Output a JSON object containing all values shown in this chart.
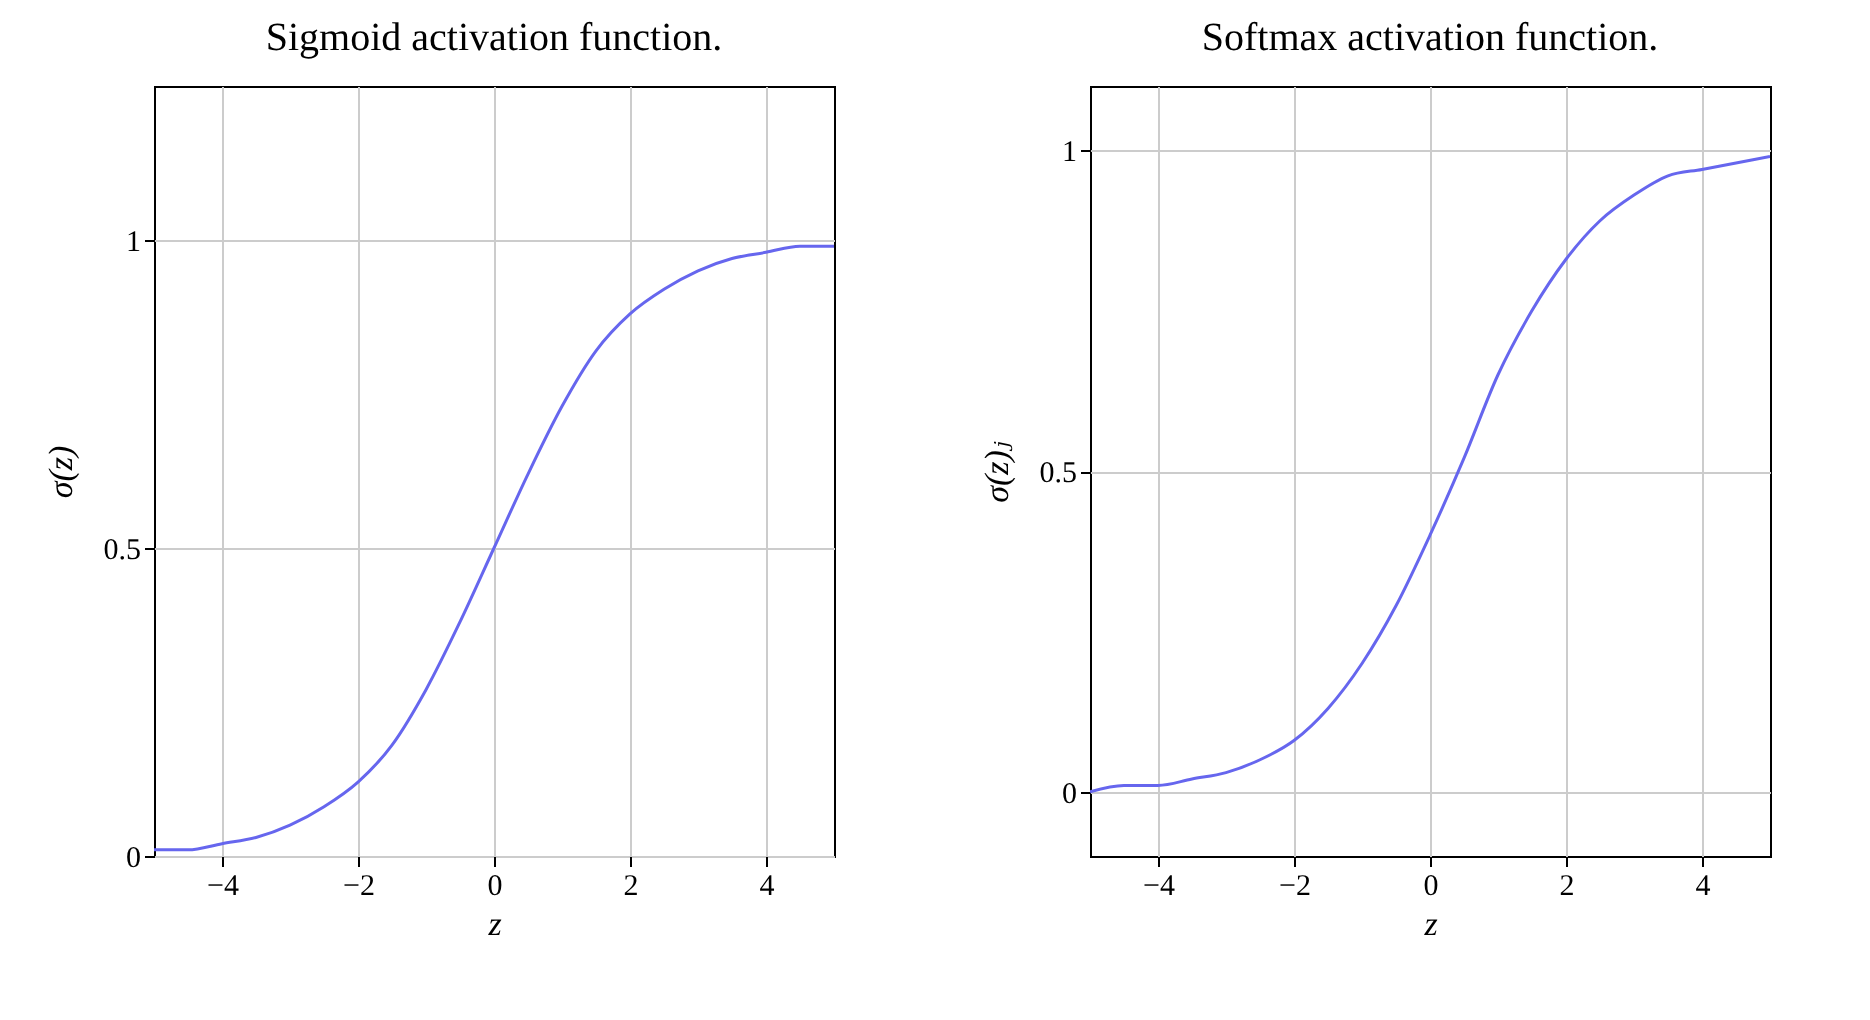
{
  "chart_data": [
    {
      "type": "line",
      "title": "Sigmoid activation function.",
      "xlabel": "z",
      "ylabel": "σ(z)",
      "x": [
        -5,
        -4.5,
        -4,
        -3.5,
        -3,
        -2.5,
        -2,
        -1.5,
        -1,
        -0.5,
        0,
        0.5,
        1,
        1.5,
        2,
        2.5,
        3,
        3.5,
        4,
        4.5,
        5
      ],
      "series": [
        {
          "color": "#6666ee",
          "values": [
            0.01,
            0.01,
            0.02,
            0.03,
            0.05,
            0.08,
            0.12,
            0.18,
            0.27,
            0.38,
            0.5,
            0.62,
            0.73,
            0.82,
            0.88,
            0.92,
            0.95,
            0.97,
            0.98,
            0.99,
            0.99
          ]
        }
      ],
      "xlim": [
        -5,
        5
      ],
      "xticks": [
        -4,
        -2,
        0,
        2,
        4
      ],
      "ylim": [
        0,
        1.25
      ],
      "yticks": [
        0,
        0.5,
        1
      ],
      "grid": true,
      "marker": "none",
      "line_style": "solid"
    },
    {
      "type": "line",
      "title": "Softmax activation function.",
      "xlabel": "z",
      "ylabel": "σ(z)ⱼ",
      "x": [
        -5,
        -4.5,
        -4,
        -3.5,
        -3,
        -2.5,
        -2,
        -1.5,
        -1,
        -0.5,
        0,
        0.5,
        1,
        1.5,
        2,
        2.5,
        3,
        3.5,
        4,
        4.5,
        5
      ],
      "series": [
        {
          "color": "#6666ee",
          "values": [
            0.0,
            0.01,
            0.01,
            0.02,
            0.03,
            0.05,
            0.08,
            0.13,
            0.2,
            0.29,
            0.4,
            0.52,
            0.65,
            0.75,
            0.83,
            0.89,
            0.93,
            0.96,
            0.97,
            0.98,
            0.99
          ]
        }
      ],
      "xlim": [
        -5,
        5
      ],
      "xticks": [
        -4,
        -2,
        0,
        2,
        4
      ],
      "ylim": [
        -0.1,
        1.1
      ],
      "yticks": [
        0,
        0.5,
        1
      ],
      "grid": true,
      "marker": "none",
      "line_style": "solid"
    }
  ]
}
